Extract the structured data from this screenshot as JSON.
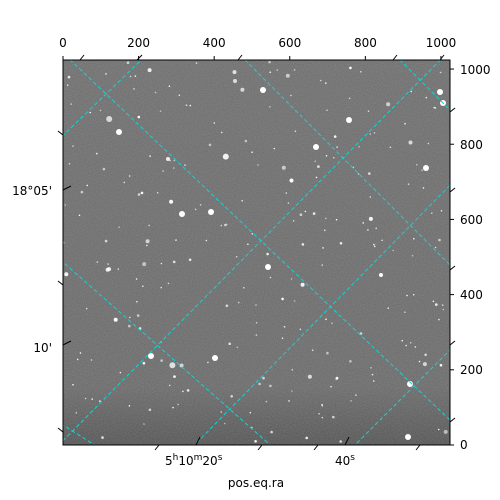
{
  "figure": {
    "xlabel": "pos.eq.ra",
    "colors": {
      "grid": "#17d1d1",
      "background": "#ffffff",
      "image_base": "#6b6b6b",
      "stars": "#ffffff"
    },
    "pixel_axes": {
      "x_ticks": [
        "0",
        "200",
        "400",
        "600",
        "800",
        "1000"
      ],
      "y_ticks": [
        "0",
        "200",
        "400",
        "600",
        "800",
        "1000"
      ],
      "range": [
        0,
        1024
      ]
    },
    "ra_ticks": [
      {
        "h": "5",
        "m": "10",
        "s": "20",
        "pos": 355
      },
      {
        "s": "40s",
        "pos": 755
      }
    ],
    "dec_ticks": [
      {
        "label": "18°05'",
        "pos": 675
      },
      {
        "label": "10'",
        "pos": 260
      }
    ]
  }
}
